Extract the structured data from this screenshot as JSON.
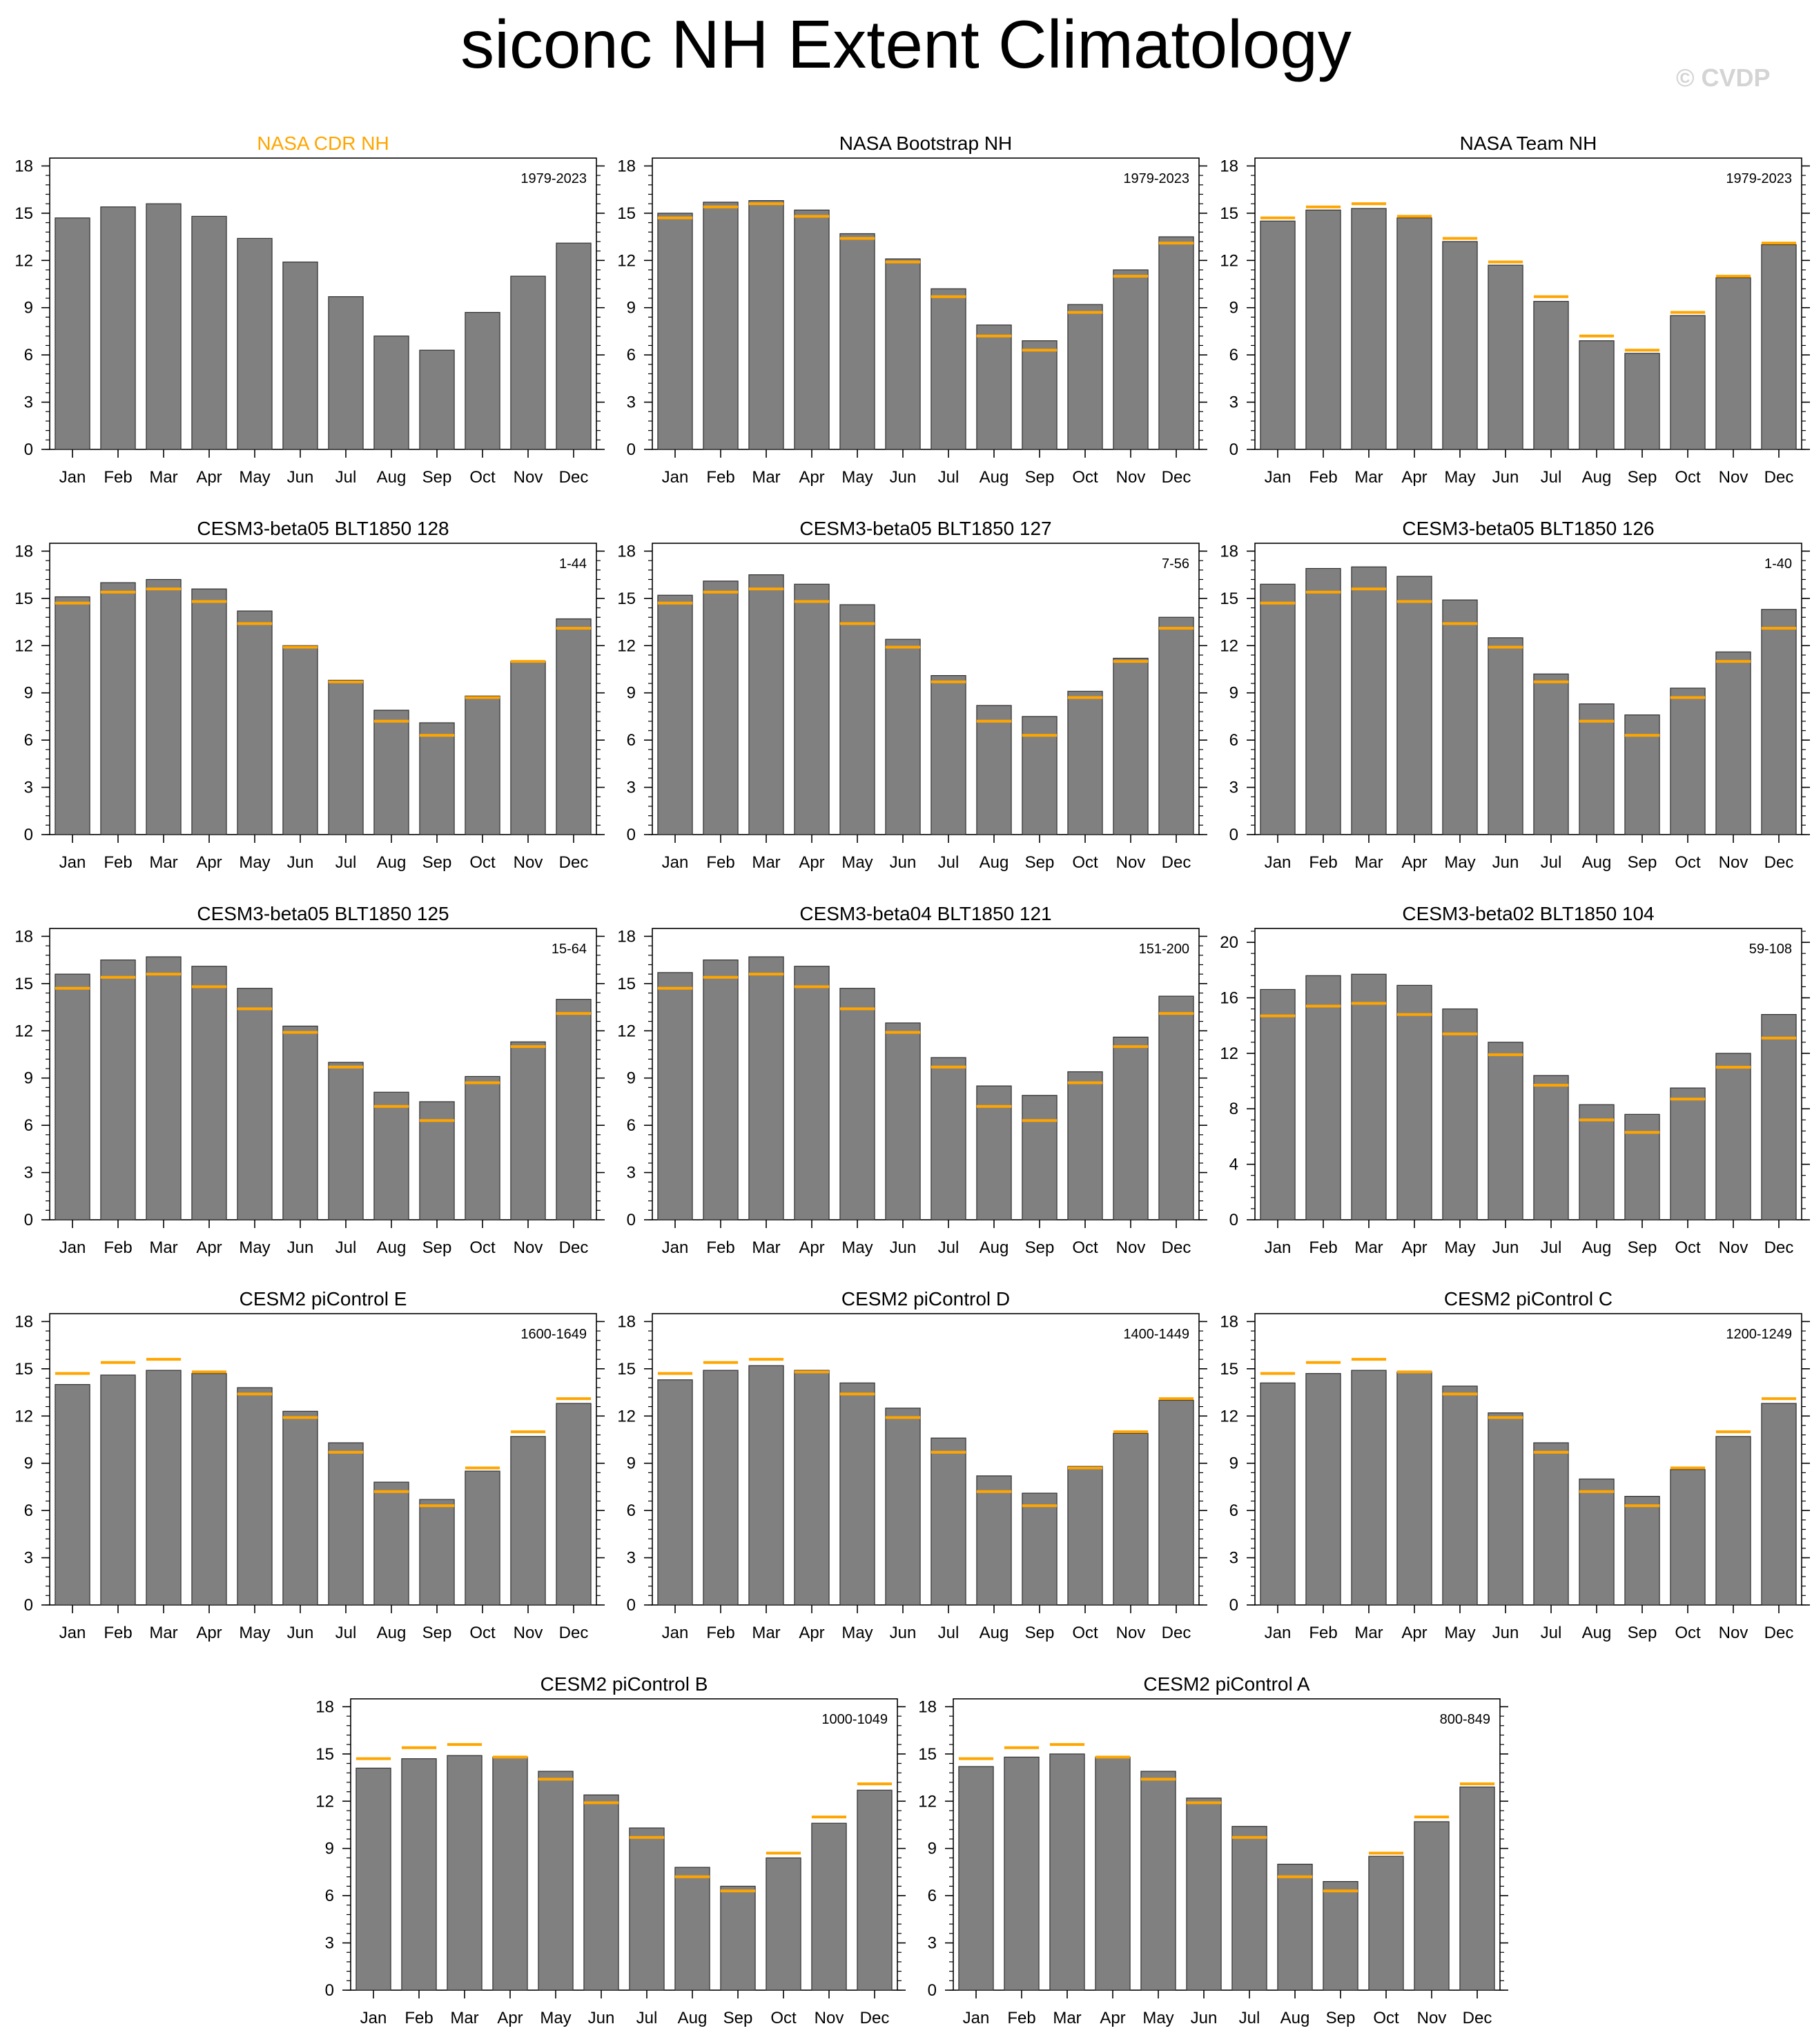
{
  "title": "siconc NH Extent Climatology",
  "credit": "© CVDP",
  "colors": {
    "bar": "#808080",
    "obs_line": "#ffa500",
    "highlight_title": "#ffa500"
  },
  "months": [
    "Jan",
    "Feb",
    "Mar",
    "Apr",
    "May",
    "Jun",
    "Jul",
    "Aug",
    "Sep",
    "Oct",
    "Nov",
    "Dec"
  ],
  "chart_data": [
    {
      "type": "bar",
      "title": "NASA CDR NH",
      "title_highlight": true,
      "years": "1979-2023",
      "categories": [
        "Jan",
        "Feb",
        "Mar",
        "Apr",
        "May",
        "Jun",
        "Jul",
        "Aug",
        "Sep",
        "Oct",
        "Nov",
        "Dec"
      ],
      "values": [
        14.7,
        15.4,
        15.6,
        14.8,
        13.4,
        11.9,
        9.7,
        7.2,
        6.3,
        8.7,
        11.0,
        13.1
      ],
      "ylim": [
        0,
        18.5
      ],
      "yticks": [
        0,
        3,
        6,
        9,
        12,
        15,
        18
      ]
    },
    {
      "type": "bar",
      "title": "NASA Bootstrap NH",
      "years": "1979-2023",
      "categories": [
        "Jan",
        "Feb",
        "Mar",
        "Apr",
        "May",
        "Jun",
        "Jul",
        "Aug",
        "Sep",
        "Oct",
        "Nov",
        "Dec"
      ],
      "values": [
        15.0,
        15.7,
        15.8,
        15.2,
        13.7,
        12.1,
        10.2,
        7.9,
        6.9,
        9.2,
        11.4,
        13.5
      ],
      "ylim": [
        0,
        18.5
      ],
      "yticks": [
        0,
        3,
        6,
        9,
        12,
        15,
        18
      ]
    },
    {
      "type": "bar",
      "title": "NASA Team NH",
      "years": "1979-2023",
      "categories": [
        "Jan",
        "Feb",
        "Mar",
        "Apr",
        "May",
        "Jun",
        "Jul",
        "Aug",
        "Sep",
        "Oct",
        "Nov",
        "Dec"
      ],
      "values": [
        14.5,
        15.2,
        15.3,
        14.7,
        13.2,
        11.7,
        9.4,
        6.9,
        6.1,
        8.5,
        10.9,
        13.0
      ],
      "ylim": [
        0,
        18.5
      ],
      "yticks": [
        0,
        3,
        6,
        9,
        12,
        15,
        18
      ]
    },
    {
      "type": "bar",
      "title": "CESM3-beta05 BLT1850 128",
      "years": "1-44",
      "categories": [
        "Jan",
        "Feb",
        "Mar",
        "Apr",
        "May",
        "Jun",
        "Jul",
        "Aug",
        "Sep",
        "Oct",
        "Nov",
        "Dec"
      ],
      "values": [
        15.1,
        16.0,
        16.2,
        15.6,
        14.2,
        12.0,
        9.8,
        7.9,
        7.1,
        8.8,
        11.0,
        13.7
      ],
      "ylim": [
        0,
        18.5
      ],
      "yticks": [
        0,
        3,
        6,
        9,
        12,
        15,
        18
      ]
    },
    {
      "type": "bar",
      "title": "CESM3-beta05 BLT1850 127",
      "years": "7-56",
      "categories": [
        "Jan",
        "Feb",
        "Mar",
        "Apr",
        "May",
        "Jun",
        "Jul",
        "Aug",
        "Sep",
        "Oct",
        "Nov",
        "Dec"
      ],
      "values": [
        15.2,
        16.1,
        16.5,
        15.9,
        14.6,
        12.4,
        10.1,
        8.2,
        7.5,
        9.1,
        11.2,
        13.8
      ],
      "ylim": [
        0,
        18.5
      ],
      "yticks": [
        0,
        3,
        6,
        9,
        12,
        15,
        18
      ]
    },
    {
      "type": "bar",
      "title": "CESM3-beta05 BLT1850 126",
      "years": "1-40",
      "categories": [
        "Jan",
        "Feb",
        "Mar",
        "Apr",
        "May",
        "Jun",
        "Jul",
        "Aug",
        "Sep",
        "Oct",
        "Nov",
        "Dec"
      ],
      "values": [
        15.9,
        16.9,
        17.0,
        16.4,
        14.9,
        12.5,
        10.2,
        8.3,
        7.6,
        9.3,
        11.6,
        14.3
      ],
      "ylim": [
        0,
        18.5
      ],
      "yticks": [
        0,
        3,
        6,
        9,
        12,
        15,
        18
      ]
    },
    {
      "type": "bar",
      "title": "CESM3-beta05 BLT1850 125",
      "years": "15-64",
      "categories": [
        "Jan",
        "Feb",
        "Mar",
        "Apr",
        "May",
        "Jun",
        "Jul",
        "Aug",
        "Sep",
        "Oct",
        "Nov",
        "Dec"
      ],
      "values": [
        15.6,
        16.5,
        16.7,
        16.1,
        14.7,
        12.3,
        10.0,
        8.1,
        7.5,
        9.1,
        11.3,
        14.0
      ],
      "ylim": [
        0,
        18.5
      ],
      "yticks": [
        0,
        3,
        6,
        9,
        12,
        15,
        18
      ]
    },
    {
      "type": "bar",
      "title": "CESM3-beta04 BLT1850 121",
      "years": "151-200",
      "categories": [
        "Jan",
        "Feb",
        "Mar",
        "Apr",
        "May",
        "Jun",
        "Jul",
        "Aug",
        "Sep",
        "Oct",
        "Nov",
        "Dec"
      ],
      "values": [
        15.7,
        16.5,
        16.7,
        16.1,
        14.7,
        12.5,
        10.3,
        8.5,
        7.9,
        9.4,
        11.6,
        14.2
      ],
      "ylim": [
        0,
        18.5
      ],
      "yticks": [
        0,
        3,
        6,
        9,
        12,
        15,
        18
      ]
    },
    {
      "type": "bar",
      "title": "CESM3-beta02 BLT1850 104",
      "years": "59-108",
      "categories": [
        "Jan",
        "Feb",
        "Mar",
        "Apr",
        "May",
        "Jun",
        "Jul",
        "Aug",
        "Sep",
        "Oct",
        "Nov",
        "Dec"
      ],
      "values": [
        16.6,
        17.6,
        17.7,
        16.9,
        15.2,
        12.8,
        10.4,
        8.3,
        7.6,
        9.5,
        12.0,
        14.8
      ],
      "ylim": [
        0,
        21
      ],
      "yticks": [
        0,
        4,
        8,
        12,
        16,
        20
      ]
    },
    {
      "type": "bar",
      "title": "CESM2 piControl E",
      "years": "1600-1649",
      "categories": [
        "Jan",
        "Feb",
        "Mar",
        "Apr",
        "May",
        "Jun",
        "Jul",
        "Aug",
        "Sep",
        "Oct",
        "Nov",
        "Dec"
      ],
      "values": [
        14.0,
        14.6,
        14.9,
        14.7,
        13.8,
        12.3,
        10.3,
        7.8,
        6.7,
        8.5,
        10.7,
        12.8
      ],
      "ylim": [
        0,
        18.5
      ],
      "yticks": [
        0,
        3,
        6,
        9,
        12,
        15,
        18
      ]
    },
    {
      "type": "bar",
      "title": "CESM2 piControl D",
      "years": "1400-1449",
      "categories": [
        "Jan",
        "Feb",
        "Mar",
        "Apr",
        "May",
        "Jun",
        "Jul",
        "Aug",
        "Sep",
        "Oct",
        "Nov",
        "Dec"
      ],
      "values": [
        14.3,
        14.9,
        15.2,
        14.9,
        14.1,
        12.5,
        10.6,
        8.2,
        7.1,
        8.8,
        10.9,
        13.0
      ],
      "ylim": [
        0,
        18.5
      ],
      "yticks": [
        0,
        3,
        6,
        9,
        12,
        15,
        18
      ]
    },
    {
      "type": "bar",
      "title": "CESM2 piControl C",
      "years": "1200-1249",
      "categories": [
        "Jan",
        "Feb",
        "Mar",
        "Apr",
        "May",
        "Jun",
        "Jul",
        "Aug",
        "Sep",
        "Oct",
        "Nov",
        "Dec"
      ],
      "values": [
        14.1,
        14.7,
        14.9,
        14.8,
        13.9,
        12.2,
        10.3,
        8.0,
        6.9,
        8.6,
        10.7,
        12.8
      ],
      "ylim": [
        0,
        18.5
      ],
      "yticks": [
        0,
        3,
        6,
        9,
        12,
        15,
        18
      ]
    },
    {
      "type": "bar",
      "title": "CESM2 piControl B",
      "years": "1000-1049",
      "categories": [
        "Jan",
        "Feb",
        "Mar",
        "Apr",
        "May",
        "Jun",
        "Jul",
        "Aug",
        "Sep",
        "Oct",
        "Nov",
        "Dec"
      ],
      "values": [
        14.1,
        14.7,
        14.9,
        14.8,
        13.9,
        12.4,
        10.3,
        7.8,
        6.6,
        8.4,
        10.6,
        12.7
      ],
      "ylim": [
        0,
        18.5
      ],
      "yticks": [
        0,
        3,
        6,
        9,
        12,
        15,
        18
      ]
    },
    {
      "type": "bar",
      "title": "CESM2 piControl A",
      "years": "800-849",
      "categories": [
        "Jan",
        "Feb",
        "Mar",
        "Apr",
        "May",
        "Jun",
        "Jul",
        "Aug",
        "Sep",
        "Oct",
        "Nov",
        "Dec"
      ],
      "values": [
        14.2,
        14.8,
        15.0,
        14.8,
        13.9,
        12.2,
        10.4,
        8.0,
        6.9,
        8.5,
        10.7,
        12.9
      ],
      "ylim": [
        0,
        18.5
      ],
      "yticks": [
        0,
        3,
        6,
        9,
        12,
        15,
        18
      ]
    }
  ],
  "reference": {
    "name": "NASA CDR NH",
    "values": [
      14.7,
      15.4,
      15.6,
      14.8,
      13.4,
      11.9,
      9.7,
      7.2,
      6.3,
      8.7,
      11.0,
      13.1
    ]
  }
}
